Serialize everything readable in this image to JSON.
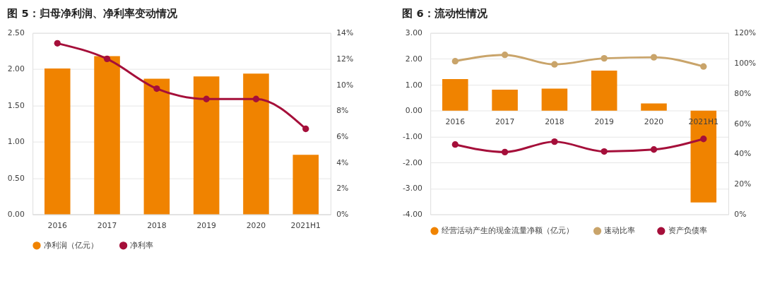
{
  "chart_data": [
    {
      "type": "bar",
      "title": "图 5：归母净利润、净利率变动情况",
      "categories": [
        "2016",
        "2017",
        "2018",
        "2019",
        "2020",
        "2021H1"
      ],
      "ylim": [
        0,
        2.5
      ],
      "yticks": [
        {
          "value": 0,
          "label": "0.00"
        },
        {
          "value": 0.5,
          "label": "0.50"
        },
        {
          "value": 1,
          "label": "1.00"
        },
        {
          "value": 1.5,
          "label": "1.50"
        },
        {
          "value": 2,
          "label": "2.00"
        },
        {
          "value": 2.5,
          "label": "2.50"
        }
      ],
      "y2lim": [
        0,
        14
      ],
      "y2ticks": [
        {
          "value": 0,
          "label": "0%"
        },
        {
          "value": 2,
          "label": "2%"
        },
        {
          "value": 4,
          "label": "4%"
        },
        {
          "value": 6,
          "label": "6%"
        },
        {
          "value": 8,
          "label": "8%"
        },
        {
          "value": 10,
          "label": "10%"
        },
        {
          "value": 12,
          "label": "12%"
        },
        {
          "value": 14,
          "label": "14%"
        }
      ],
      "grid": "y",
      "legend": "bottom",
      "marker": "circle",
      "series": [
        {
          "name": "净利润（亿元）",
          "color": "#f08300",
          "values": [
            2.01,
            2.18,
            1.87,
            1.9,
            1.94,
            0.82
          ]
        },
        {
          "name": "净利率",
          "type": "line",
          "axis": "y2",
          "color": "#a50f3a",
          "values": [
            13.2,
            12.0,
            9.7,
            8.9,
            8.9,
            6.6
          ]
        }
      ]
    },
    {
      "type": "bar",
      "title": "图 6：流动性情况",
      "categories": [
        "2016",
        "2017",
        "2018",
        "2019",
        "2020",
        "2021H1"
      ],
      "ylim": [
        -4,
        3
      ],
      "yticks": [
        {
          "value": -4,
          "label": "-4.00"
        },
        {
          "value": -3,
          "label": "-3.00"
        },
        {
          "value": -2,
          "label": "-2.00"
        },
        {
          "value": -1,
          "label": "-1.00"
        },
        {
          "value": 0,
          "label": "0.00"
        },
        {
          "value": 1,
          "label": "1.00"
        },
        {
          "value": 2,
          "label": "2.00"
        },
        {
          "value": 3,
          "label": "3.00"
        }
      ],
      "y2lim": [
        0,
        120
      ],
      "y2ticks": [
        {
          "value": 0,
          "label": "0%"
        },
        {
          "value": 20,
          "label": "20%"
        },
        {
          "value": 40,
          "label": "40%"
        },
        {
          "value": 60,
          "label": "60%"
        },
        {
          "value": 80,
          "label": "80%"
        },
        {
          "value": 100,
          "label": "100%"
        },
        {
          "value": 120,
          "label": "120%"
        }
      ],
      "grid": "y",
      "legend": "bottom",
      "marker": "circle",
      "series": [
        {
          "name": "经营活动产生的现金流量净额（亿元）",
          "color": "#f08300",
          "values": [
            1.22,
            0.81,
            0.85,
            1.55,
            0.28,
            -3.54
          ]
        },
        {
          "name": "速动比率",
          "type": "line",
          "axis": "y2",
          "color": "#c9a46a",
          "values": [
            101.3,
            105.5,
            99.2,
            103.2,
            103.9,
            97.8
          ]
        },
        {
          "name": "资产负债率",
          "type": "line",
          "axis": "y2",
          "color": "#a50f3a",
          "values": [
            46.2,
            41.2,
            48.1,
            41.6,
            42.9,
            49.9
          ]
        }
      ]
    }
  ]
}
